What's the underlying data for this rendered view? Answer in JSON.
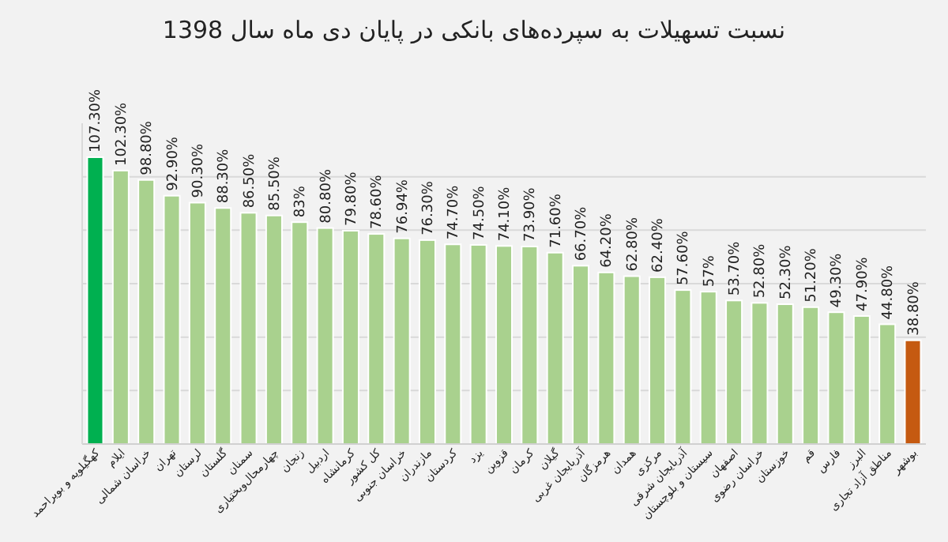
{
  "chart_data": {
    "type": "bar",
    "title": "نسبت تسهیلات به سپرده‌های بانکی در پایان دی ماه سال 1398",
    "categories": [
      "کهگیلویه و بویراحمد",
      "ایلام",
      "خراسان شمالی",
      "تهران",
      "لرستان",
      "گلستان",
      "سمنان",
      "چهارمحال‌وبختیاری",
      "زنجان",
      "اردبیل",
      "کرمانشاه",
      "کل کشور",
      "خراسان جنوبی",
      "مازندران",
      "کردستان",
      "یزد",
      "قزوین",
      "کرمان",
      "گیلان",
      "آذربایجان غربی",
      "هرمزگان",
      "همدان",
      "مرکزی",
      "آذربایجان شرقی",
      "سیستان و بلوچستان",
      "اصفهان",
      "خراسان رضوی",
      "خوزستان",
      "قم",
      "فارس",
      "البرز",
      "مناطق آزاد تجاری",
      "بوشهر"
    ],
    "values": [
      107.3,
      102.3,
      98.8,
      92.9,
      90.3,
      88.3,
      86.5,
      85.5,
      83,
      80.8,
      79.8,
      78.6,
      76.94,
      76.3,
      74.7,
      74.5,
      74.1,
      73.9,
      71.6,
      66.7,
      64.2,
      62.8,
      62.4,
      57.6,
      57,
      53.7,
      52.8,
      52.3,
      51.2,
      49.3,
      47.9,
      44.8,
      38.8
    ],
    "value_labels": [
      "107.30%",
      "102.30%",
      "98.80%",
      "92.90%",
      "90.30%",
      "88.30%",
      "86.50%",
      "85.50%",
      "83%",
      "80.80%",
      "79.80%",
      "78.60%",
      "76.94%",
      "76.30%",
      "74.70%",
      "74.50%",
      "74.10%",
      "73.90%",
      "71.60%",
      "66.70%",
      "64.20%",
      "62.80%",
      "62.40%",
      "57.60%",
      "57%",
      "53.70%",
      "52.80%",
      "52.30%",
      "51.20%",
      "49.30%",
      "47.90%",
      "44.80%",
      "38.80%"
    ],
    "colors": [
      "#00b050",
      "#a9d18e",
      "#a9d18e",
      "#a9d18e",
      "#a9d18e",
      "#a9d18e",
      "#a9d18e",
      "#a9d18e",
      "#a9d18e",
      "#a9d18e",
      "#a9d18e",
      "#a9d18e",
      "#a9d18e",
      "#a9d18e",
      "#a9d18e",
      "#a9d18e",
      "#a9d18e",
      "#a9d18e",
      "#a9d18e",
      "#a9d18e",
      "#a9d18e",
      "#a9d18e",
      "#a9d18e",
      "#a9d18e",
      "#a9d18e",
      "#a9d18e",
      "#a9d18e",
      "#a9d18e",
      "#a9d18e",
      "#a9d18e",
      "#a9d18e",
      "#a9d18e",
      "#c55a11"
    ],
    "ylim": [
      0,
      120
    ],
    "yticks": [
      {
        "value": 0,
        "label": null
      },
      {
        "value": 20,
        "label": null
      },
      {
        "value": 40,
        "label": null
      },
      {
        "value": 60,
        "label": null
      },
      {
        "value": 80,
        "label": null
      },
      {
        "value": 100,
        "label": null
      }
    ],
    "grid": "y",
    "tick_labels": "x"
  }
}
